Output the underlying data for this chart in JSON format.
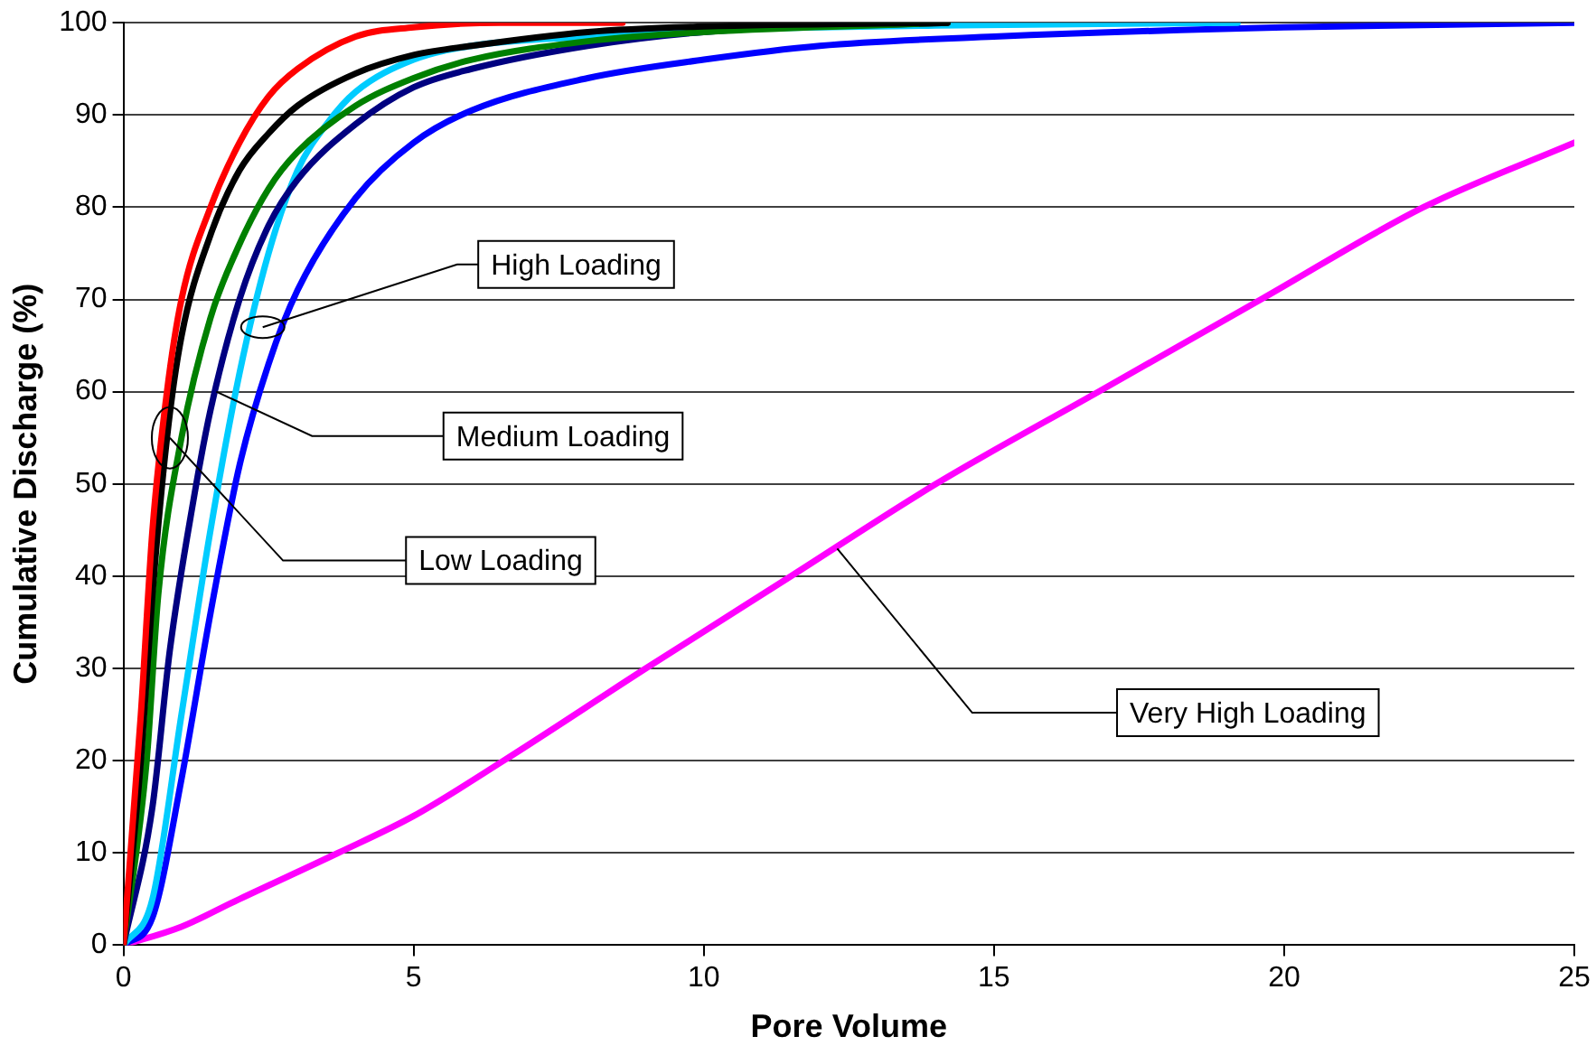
{
  "chart_data": {
    "type": "line",
    "xlabel": "Pore Volume",
    "ylabel": "Cumulative Discharge (%)",
    "xlim": [
      0,
      25
    ],
    "xticks": [
      0,
      5,
      10,
      15,
      20,
      25
    ],
    "ylim": [
      0,
      100
    ],
    "yticks": [
      0,
      10,
      20,
      30,
      40,
      50,
      60,
      70,
      80,
      90,
      100
    ],
    "grid": "y",
    "legend": false,
    "marker": "none",
    "line_style": "solid",
    "series": [
      {
        "color": "#ff0000",
        "x": [
          0,
          0.3,
          0.5,
          0.75,
          1,
          1.5,
          2,
          2.5,
          3,
          4,
          5,
          6.5,
          8.6
        ],
        "values": [
          0,
          25,
          45,
          60,
          70,
          80,
          87,
          92,
          95,
          98.5,
          99.5,
          100,
          100
        ]
      },
      {
        "color": "#000000",
        "x": [
          0,
          0.3,
          0.5,
          0.75,
          1,
          1.5,
          2,
          2.5,
          3,
          4,
          5,
          6,
          8,
          10,
          14.2
        ],
        "values": [
          0,
          20,
          38,
          55,
          66,
          77,
          84,
          88,
          91,
          94.5,
          96.5,
          97.5,
          99,
          99.6,
          100
        ]
      },
      {
        "color": "#008000",
        "x": [
          0,
          0.4,
          0.6,
          1,
          1.5,
          2,
          2.5,
          3,
          4,
          5,
          6,
          8,
          10,
          14.2
        ],
        "values": [
          0,
          20,
          38,
          55,
          68,
          76,
          82,
          86,
          91,
          94,
          96,
          98,
          99,
          100
        ]
      },
      {
        "color": "#000080",
        "x": [
          0,
          0.5,
          0.8,
          1.2,
          1.5,
          2,
          2.5,
          3,
          4,
          5,
          6,
          8,
          10,
          14.2
        ],
        "values": [
          0,
          15,
          32,
          48,
          58,
          70,
          78,
          83,
          89,
          93,
          95,
          97.5,
          99,
          100
        ]
      },
      {
        "color": "#00ccff",
        "x": [
          0,
          0.5,
          1,
          1.5,
          2,
          2.5,
          3,
          3.5,
          4,
          5,
          6,
          8,
          10,
          14,
          19.2
        ],
        "values": [
          0,
          5,
          25,
          45,
          62,
          75,
          84,
          89,
          92.5,
          96,
          97.5,
          98.5,
          99.2,
          99.7,
          100
        ]
      },
      {
        "color": "#0000ff",
        "x": [
          0,
          0.5,
          1,
          1.5,
          2,
          2.5,
          3,
          4,
          5,
          6,
          8,
          10,
          12,
          15,
          20,
          25
        ],
        "values": [
          0,
          3,
          18,
          36,
          52,
          63,
          71,
          81,
          87,
          90.5,
          94,
          96,
          97.5,
          98.5,
          99.5,
          100
        ]
      },
      {
        "color": "#ff00ff",
        "x": [
          0,
          1,
          2,
          3.7,
          5,
          6.55,
          9,
          11.5,
          14,
          16.8,
          19.6,
          22.4,
          25
        ],
        "values": [
          0,
          2,
          5,
          10,
          14,
          20,
          30,
          40,
          50,
          60,
          70,
          80,
          87
        ]
      }
    ],
    "annotations": [
      {
        "text": "High Loading",
        "x": 2.4,
        "y": 67
      },
      {
        "text": "Medium Loading",
        "x": 1.6,
        "y": 60
      },
      {
        "text": "Low Loading",
        "x": 0.8,
        "y": 55
      },
      {
        "text": "Very High Loading",
        "x": 12.3,
        "y": 43
      }
    ]
  }
}
